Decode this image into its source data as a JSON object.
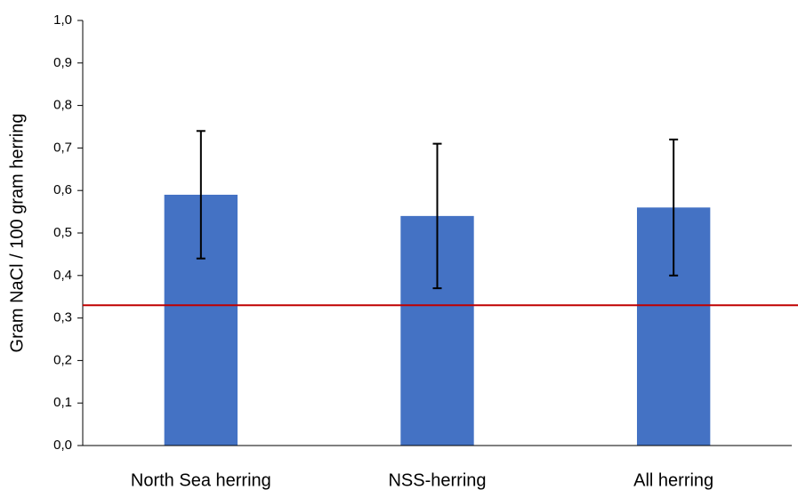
{
  "chart_data": {
    "type": "bar",
    "y_label": "Gram NaCl / 100 gram herring",
    "categories": [
      "North Sea herring",
      "NSS-herring",
      "All herring"
    ],
    "values": [
      0.59,
      0.54,
      0.56
    ],
    "errors": [
      0.15,
      0.17,
      0.16
    ],
    "color": "#4472c4",
    "error_color": "#000000",
    "reference_line": {
      "value": 0.33,
      "color": "#c00000"
    },
    "ylim": [
      0,
      1
    ],
    "yticks": [
      {
        "value": 0,
        "label": "0,0"
      },
      {
        "value": 0.1,
        "label": "0,1"
      },
      {
        "value": 0.2,
        "label": "0,2"
      },
      {
        "value": 0.3,
        "label": "0,3"
      },
      {
        "value": 0.4,
        "label": "0,4"
      },
      {
        "value": 0.5,
        "label": "0,5"
      },
      {
        "value": 0.6,
        "label": "0,6"
      },
      {
        "value": 0.7,
        "label": "0,7"
      },
      {
        "value": 0.8,
        "label": "0,8"
      },
      {
        "value": 0.9,
        "label": "0,9"
      },
      {
        "value": 1,
        "label": "1,0"
      }
    ],
    "grid": false
  }
}
